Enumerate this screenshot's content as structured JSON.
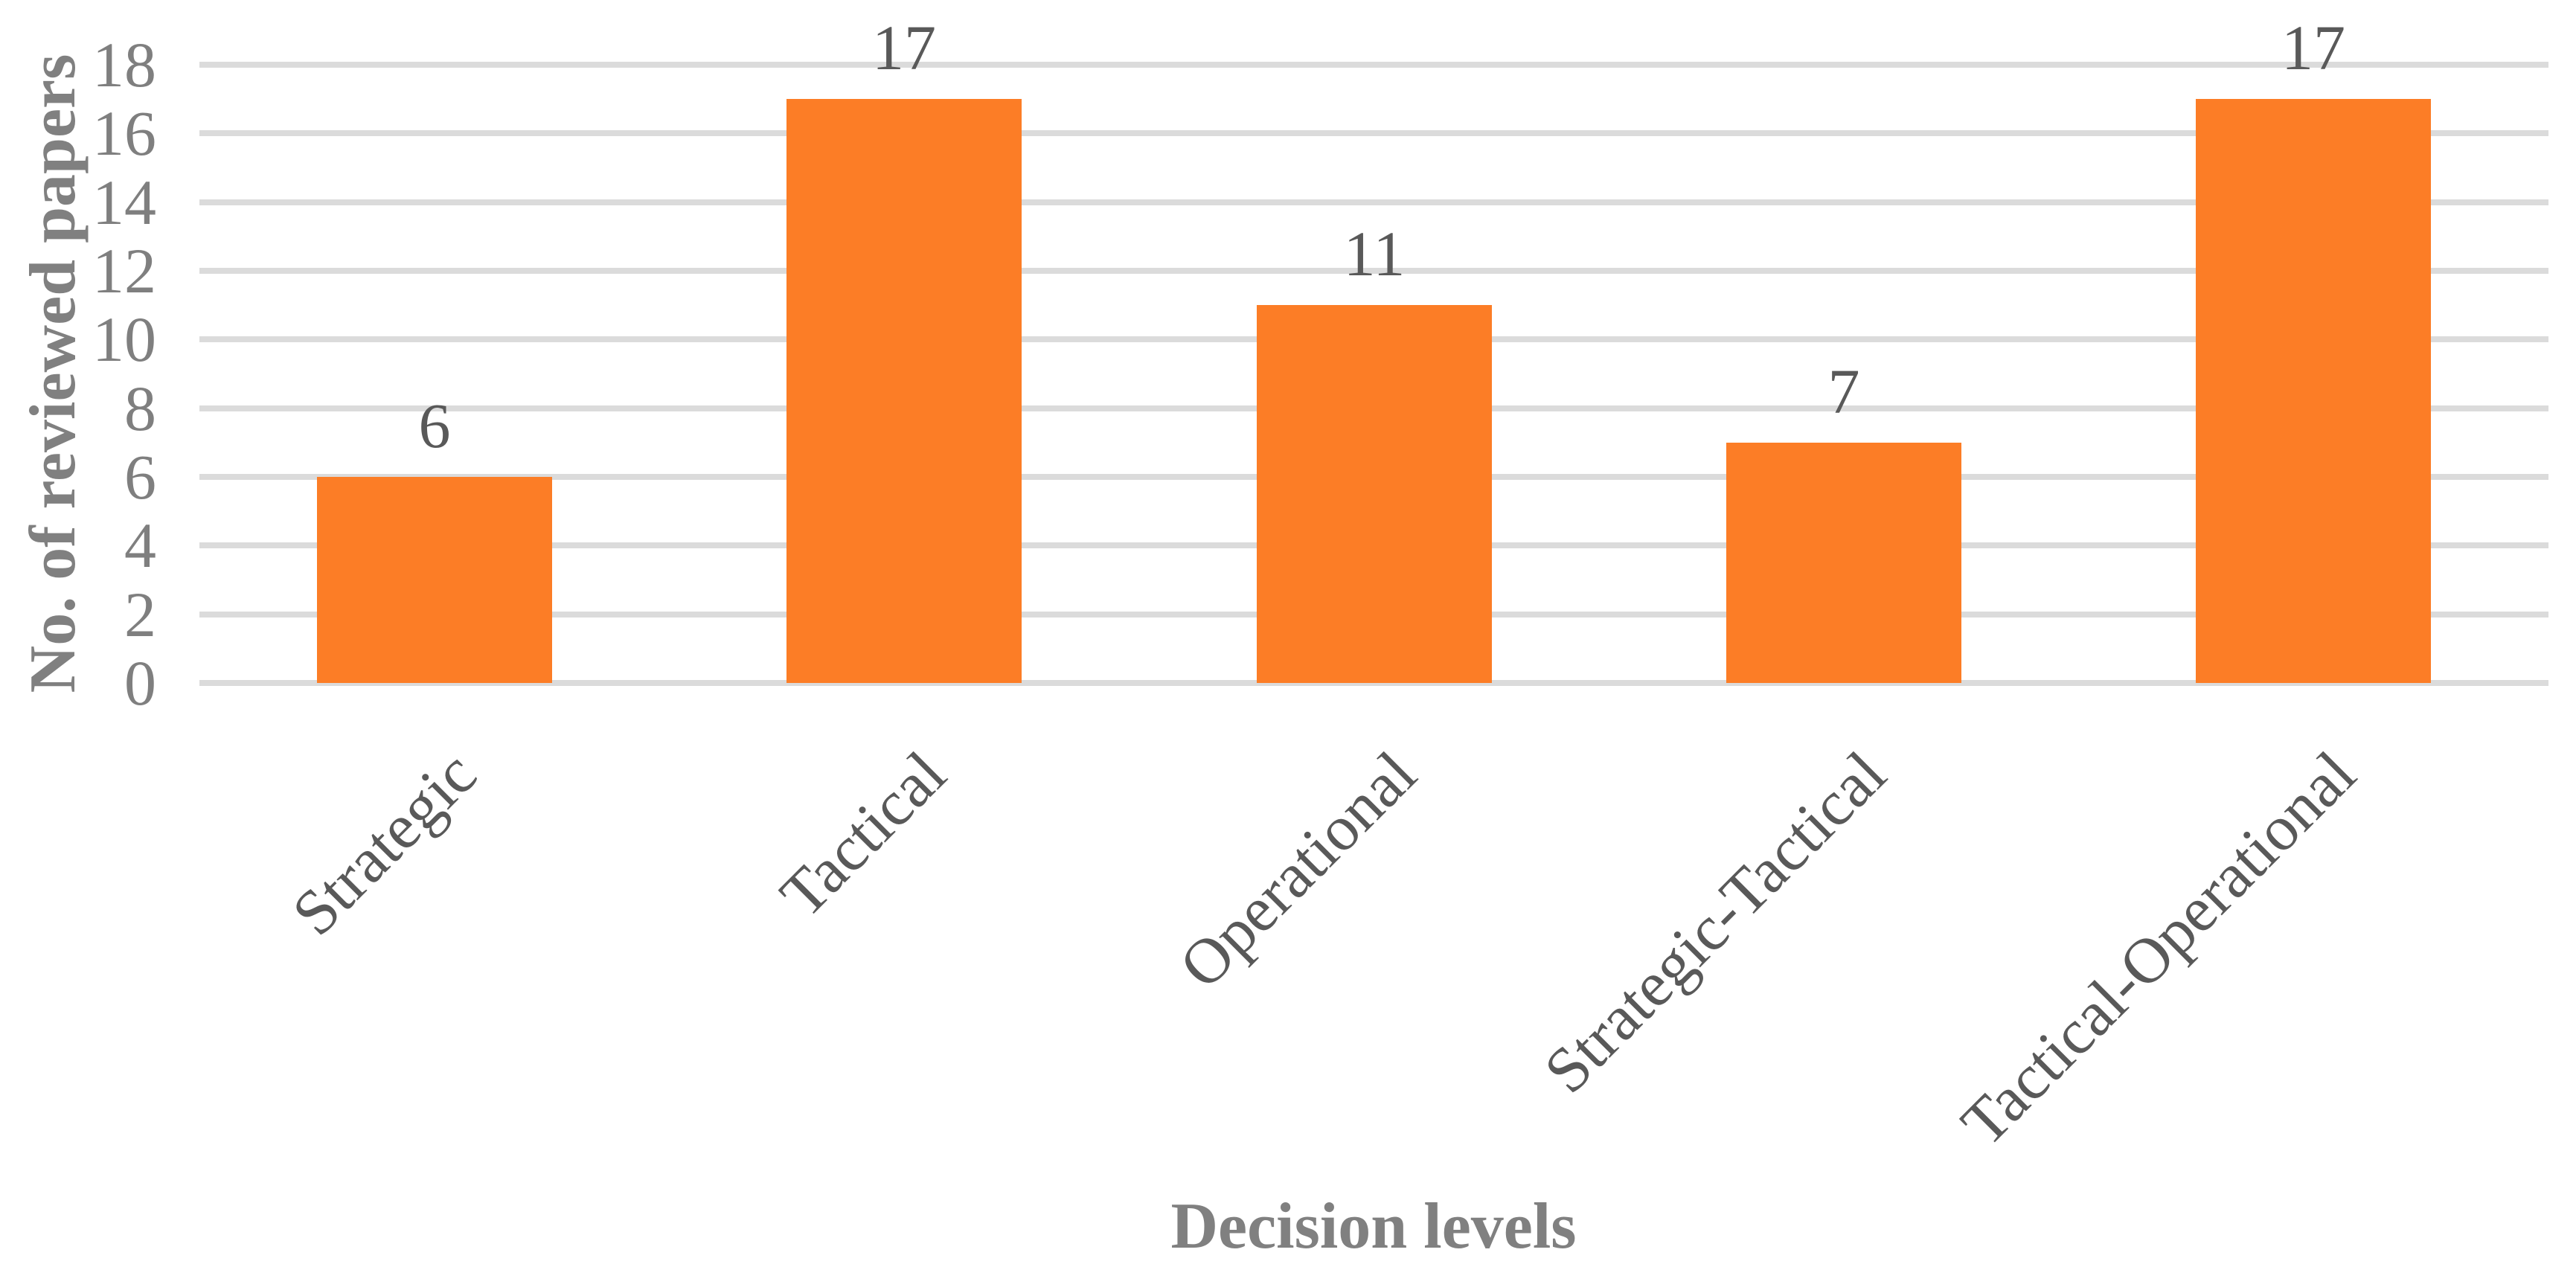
{
  "page": {
    "background": "#FFFFFF"
  },
  "chart_data": {
    "type": "bar",
    "categories": [
      "Strategic",
      "Tactical",
      "Operational",
      "Strategic-Tactical",
      "Tactical-Operational"
    ],
    "values": [
      6,
      17,
      11,
      7,
      17
    ],
    "data_labels": [
      "6",
      "17",
      "11",
      "7",
      "17"
    ],
    "xlabel": "Decision levels",
    "ylabel": "No. of reviewed papers",
    "ylim": [
      0,
      18
    ],
    "yticks": [
      0,
      2,
      4,
      6,
      8,
      10,
      12,
      14,
      16,
      18
    ],
    "grid": "horizontal-only",
    "legend": "none",
    "colors": {
      "bar": "#FC7D26",
      "gridline": "#DBDBDB",
      "tick_labels": "#7F7F7F",
      "data_labels": "#595959",
      "category_labels": "#595959",
      "axis_titles": "#808080",
      "background": "#FFFFFF"
    }
  }
}
